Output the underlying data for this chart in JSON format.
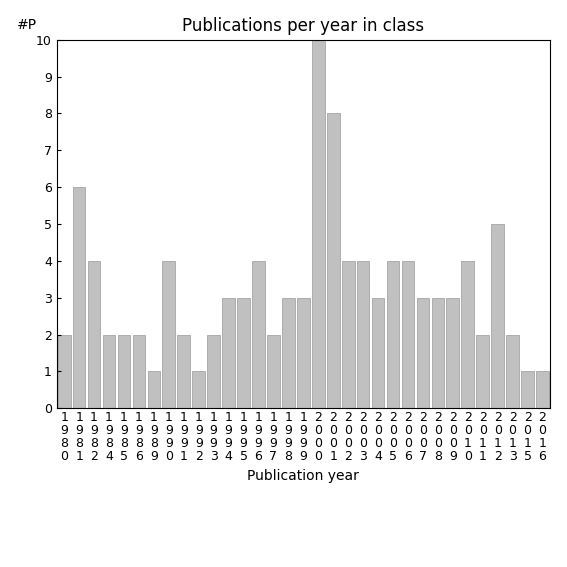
{
  "title": "Publications per year in class",
  "xlabel": "Publication year",
  "ylabel": "#P",
  "bar_color": "#c0c0c0",
  "edge_color": "#999999",
  "years": [
    "1980",
    "1981",
    "1982",
    "1984",
    "1985",
    "1986",
    "1989",
    "1990",
    "1991",
    "1992",
    "1993",
    "1994",
    "1995",
    "1996",
    "1997",
    "1998",
    "1999",
    "2000",
    "2001",
    "2002",
    "2003",
    "2004",
    "2005",
    "2006",
    "2007",
    "2008",
    "2009",
    "2010",
    "2011",
    "2012",
    "2013",
    "2015",
    "2016"
  ],
  "values": [
    2,
    6,
    4,
    2,
    2,
    2,
    1,
    4,
    2,
    1,
    2,
    3,
    3,
    4,
    2,
    3,
    3,
    10,
    8,
    4,
    4,
    3,
    4,
    4,
    3,
    3,
    3,
    4,
    2,
    5,
    2,
    1,
    1
  ],
  "ylim": [
    0,
    10
  ],
  "yticks": [
    0,
    1,
    2,
    3,
    4,
    5,
    6,
    7,
    8,
    9,
    10
  ],
  "background_color": "#ffffff",
  "title_fontsize": 12,
  "label_fontsize": 10,
  "tick_fontsize": 9
}
